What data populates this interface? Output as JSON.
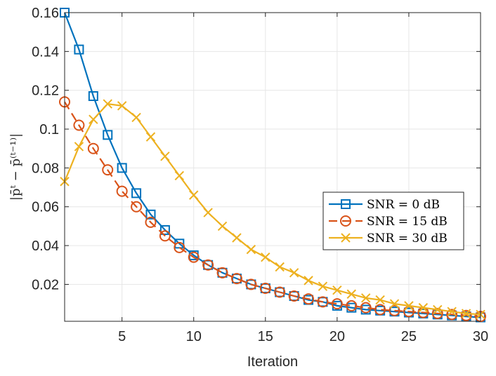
{
  "chart_data": {
    "type": "line",
    "title": "",
    "xlabel": "Iteration",
    "ylabel": "|p̄ᵗ − p̄⁽ᵗ⁻¹⁾|",
    "xlim": [
      1,
      30
    ],
    "ylim": [
      0.001,
      0.16
    ],
    "xticks": [
      5,
      10,
      15,
      20,
      25,
      30
    ],
    "yticks": [
      0.02,
      0.04,
      0.06,
      0.08,
      0.1,
      0.12,
      0.14,
      0.16
    ],
    "ytick_labels": [
      "0.02",
      "0.04",
      "0.06",
      "0.08",
      "0.1",
      "0.12",
      "0.14",
      "0.16"
    ],
    "grid": true,
    "legend_location": "center-right",
    "x": [
      1,
      2,
      3,
      4,
      5,
      6,
      7,
      8,
      9,
      10,
      11,
      12,
      13,
      14,
      15,
      16,
      17,
      18,
      19,
      20,
      21,
      22,
      23,
      24,
      25,
      26,
      27,
      28,
      29,
      30
    ],
    "series": [
      {
        "name": "SNR = 0 dB",
        "color": "#0072bd",
        "marker": "square",
        "line": "solid",
        "values": [
          0.16,
          0.141,
          0.117,
          0.097,
          0.08,
          0.067,
          0.056,
          0.048,
          0.041,
          0.035,
          0.03,
          0.026,
          0.023,
          0.02,
          0.018,
          0.016,
          0.014,
          0.012,
          0.011,
          0.009,
          0.008,
          0.007,
          0.0065,
          0.006,
          0.0055,
          0.005,
          0.0045,
          0.004,
          0.0035,
          0.003
        ]
      },
      {
        "name": "SNR = 15 dB",
        "color": "#d95319",
        "marker": "circle",
        "line": "dashed",
        "values": [
          0.114,
          0.102,
          0.09,
          0.079,
          0.068,
          0.06,
          0.052,
          0.045,
          0.039,
          0.034,
          0.03,
          0.026,
          0.023,
          0.02,
          0.018,
          0.016,
          0.014,
          0.0125,
          0.011,
          0.01,
          0.009,
          0.008,
          0.007,
          0.0065,
          0.006,
          0.0055,
          0.005,
          0.0045,
          0.004,
          0.0035
        ]
      },
      {
        "name": "SNR = 30 dB",
        "color": "#edb120",
        "marker": "x",
        "line": "solid",
        "values": [
          0.073,
          0.091,
          0.105,
          0.113,
          0.112,
          0.106,
          0.096,
          0.086,
          0.076,
          0.066,
          0.057,
          0.05,
          0.044,
          0.038,
          0.034,
          0.029,
          0.026,
          0.022,
          0.019,
          0.017,
          0.015,
          0.013,
          0.012,
          0.01,
          0.009,
          0.008,
          0.007,
          0.006,
          0.005,
          0.0045
        ]
      }
    ]
  }
}
